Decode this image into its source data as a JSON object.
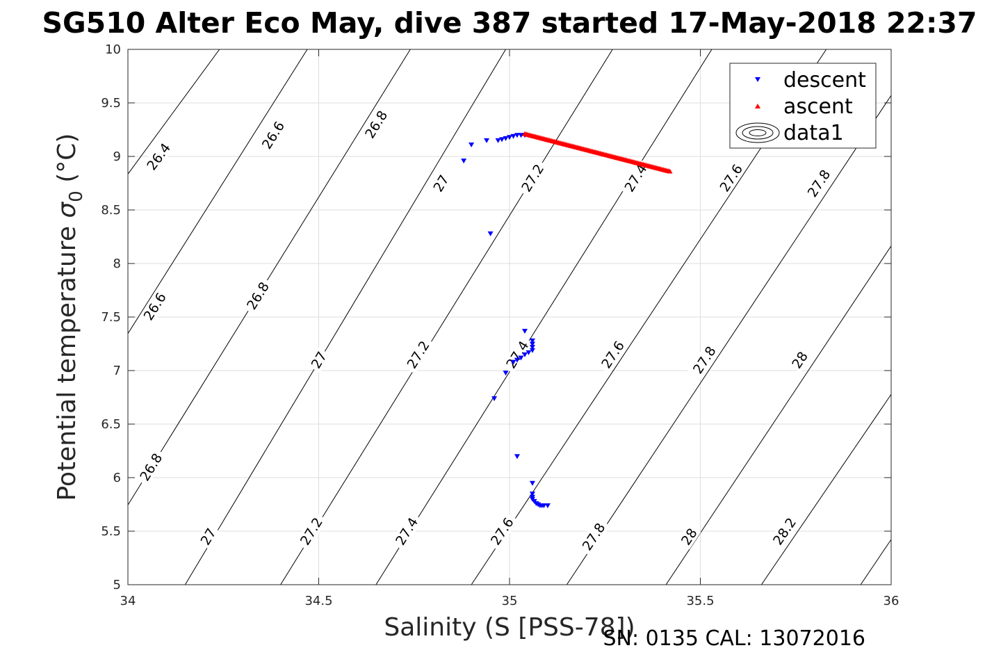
{
  "chart_data": {
    "type": "scatter",
    "title": "SG510 Alter Eco May, dive 387 started 17-May-2018 22:37",
    "xlabel": "Salinity (S [PSS-78])",
    "ylabel_main": "Potential temperature ",
    "ylabel_sigma": "σ",
    "ylabel_sub": "0",
    "ylabel_unit": " (°C)",
    "footer": "SN: 0135  CAL: 13072016",
    "xlim": [
      34,
      36
    ],
    "ylim": [
      5,
      10
    ],
    "xticks": [
      "34",
      "34.5",
      "35",
      "35.5",
      "36"
    ],
    "yticks": [
      "5",
      "5.5",
      "6",
      "6.5",
      "7",
      "7.5",
      "8",
      "8.5",
      "9",
      "9.5",
      "10"
    ],
    "grid": true,
    "legend_position": "top-right",
    "legend": [
      {
        "name": "descent",
        "marker": "triangle-down",
        "color": "#0000ff"
      },
      {
        "name": "ascent",
        "marker": "triangle-up",
        "color": "#ff0000"
      },
      {
        "name": "data1",
        "marker": "contour",
        "color": "#000000"
      }
    ],
    "series": [
      {
        "name": "descent",
        "color": "#0000ff",
        "marker": "triangle-down",
        "points": [
          [
            34.88,
            8.96
          ],
          [
            34.9,
            9.11
          ],
          [
            34.94,
            9.15
          ],
          [
            34.97,
            9.15
          ],
          [
            34.98,
            9.16
          ],
          [
            34.99,
            9.17
          ],
          [
            35.0,
            9.18
          ],
          [
            35.01,
            9.19
          ],
          [
            35.02,
            9.2
          ],
          [
            35.03,
            9.2
          ],
          [
            35.04,
            9.2
          ],
          [
            34.95,
            8.28
          ],
          [
            35.04,
            7.37
          ],
          [
            35.06,
            7.28
          ],
          [
            35.06,
            7.25
          ],
          [
            35.06,
            7.22
          ],
          [
            35.06,
            7.19
          ],
          [
            35.05,
            7.17
          ],
          [
            35.04,
            7.15
          ],
          [
            35.03,
            7.12
          ],
          [
            35.02,
            7.1
          ],
          [
            35.01,
            7.08
          ],
          [
            34.99,
            6.98
          ],
          [
            34.96,
            6.74
          ],
          [
            35.02,
            6.2
          ],
          [
            35.06,
            5.95
          ],
          [
            35.06,
            5.85
          ],
          [
            35.06,
            5.82
          ],
          [
            35.06,
            5.8
          ],
          [
            35.065,
            5.78
          ],
          [
            35.07,
            5.76
          ],
          [
            35.075,
            5.75
          ],
          [
            35.08,
            5.74
          ],
          [
            35.085,
            5.74
          ],
          [
            35.09,
            5.74
          ],
          [
            35.1,
            5.74
          ]
        ]
      },
      {
        "name": "ascent",
        "color": "#ff0000",
        "marker": "triangle-up",
        "start": [
          35.04,
          9.21
        ],
        "end": [
          35.42,
          8.86
        ],
        "count": 95
      }
    ],
    "contours": [
      {
        "level": "26.4",
        "lines": [
          [
            33.9,
            8.35
          ],
          [
            34.24,
            10
          ]
        ],
        "labels": [
          [
            34.08,
            9.0
          ]
        ]
      },
      {
        "level": "26.6",
        "lines": [
          [
            33.93,
            6.95
          ],
          [
            34.47,
            10
          ]
        ],
        "labels": [
          [
            34.07,
            7.6
          ],
          [
            34.38,
            9.2
          ]
        ]
      },
      {
        "level": "26.8",
        "lines": [
          [
            33.94,
            5.4
          ],
          [
            34.74,
            10
          ]
        ],
        "labels": [
          [
            34.06,
            6.1
          ],
          [
            34.34,
            7.7
          ],
          [
            34.65,
            9.3
          ]
        ]
      },
      {
        "level": "27",
        "lines": [
          [
            34.15,
            5.0
          ],
          [
            34.99,
            10
          ]
        ],
        "labels": [
          [
            34.21,
            5.45
          ],
          [
            34.5,
            7.1
          ],
          [
            34.82,
            8.75
          ]
        ]
      },
      {
        "level": "27.2",
        "lines": [
          [
            34.4,
            5.0
          ],
          [
            35.27,
            10
          ]
        ],
        "labels": [
          [
            34.48,
            5.5
          ],
          [
            34.76,
            7.15
          ],
          [
            35.06,
            8.8
          ]
        ]
      },
      {
        "level": "27.4",
        "lines": [
          [
            34.65,
            5.0
          ],
          [
            35.53,
            10
          ]
        ],
        "labels": [
          [
            34.73,
            5.5
          ],
          [
            35.02,
            7.15
          ],
          [
            35.33,
            8.8
          ]
        ]
      },
      {
        "level": "27.6",
        "lines": [
          [
            34.9,
            5.0
          ],
          [
            35.83,
            10
          ]
        ],
        "labels": [
          [
            34.98,
            5.5
          ],
          [
            35.27,
            7.15
          ],
          [
            35.58,
            8.8
          ]
        ]
      },
      {
        "level": "27.8",
        "lines": [
          [
            35.15,
            5.0
          ],
          [
            36.08,
            10
          ]
        ],
        "labels": [
          [
            35.22,
            5.45
          ],
          [
            35.51,
            7.1
          ],
          [
            35.81,
            8.75
          ]
        ]
      },
      {
        "level": "28",
        "lines": [
          [
            35.41,
            5.0
          ],
          [
            36.1,
            8.7
          ]
        ],
        "labels": [
          [
            35.47,
            5.45
          ],
          [
            35.76,
            7.1
          ]
        ]
      },
      {
        "level": "28.2",
        "lines": [
          [
            35.66,
            5.0
          ],
          [
            36.1,
            7.3
          ]
        ],
        "labels": [
          [
            35.72,
            5.5
          ]
        ]
      },
      {
        "level": "",
        "lines": [
          [
            35.92,
            5.0
          ],
          [
            36.1,
            5.95
          ]
        ],
        "labels": []
      }
    ]
  }
}
